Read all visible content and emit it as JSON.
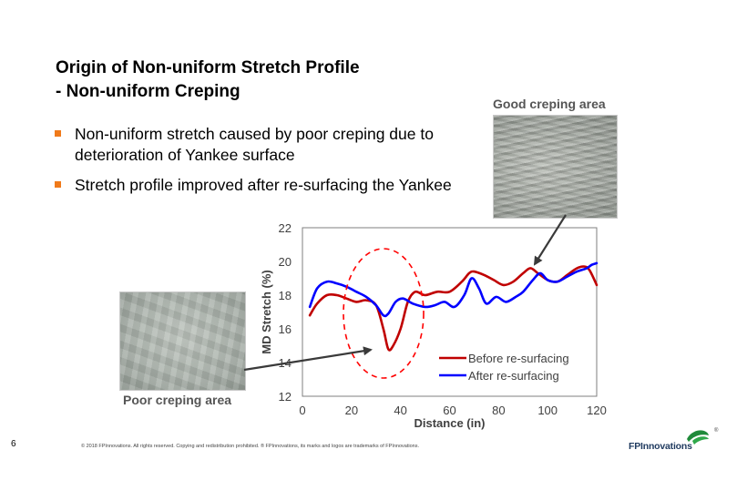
{
  "slide": {
    "title_line1": "Origin of Non-uniform Stretch Profile",
    "title_line2": "- Non-uniform Creping",
    "bullets": [
      "Non-uniform stretch caused by poor creping due to deterioration of Yankee surface",
      "Stretch profile improved after re-surfacing the Yankee"
    ],
    "good_label": "Good creping area",
    "poor_label": "Poor creping area",
    "page_number": "6",
    "copyright": "© 2018 FPInnovations. All rights reserved. Copying and redistribution prohibited. ® FPInnovations, its marks and logos are trademarks of FPInnovations.",
    "logo_text": "FPInnovations",
    "logo_mark": "®"
  },
  "colors": {
    "before": "#c00000",
    "after": "#0000ff",
    "bullet": "#f07a1a",
    "highlight": "#ff0000"
  },
  "chart_data": {
    "type": "line",
    "xlabel": "Distance (in)",
    "ylabel": "MD Stretch (%)",
    "xlim": [
      0,
      120
    ],
    "ylim": [
      12,
      22
    ],
    "xticks": [
      0,
      20,
      40,
      60,
      80,
      100,
      120
    ],
    "yticks": [
      12,
      14,
      16,
      18,
      20,
      22
    ],
    "grid": false,
    "legend_position": "bottom-right",
    "series": [
      {
        "name": "Before re-surfacing",
        "x": [
          3,
          6,
          10,
          14,
          18,
          22,
          26,
          30,
          33,
          35,
          37,
          40,
          43,
          46,
          50,
          55,
          60,
          65,
          68,
          70,
          74,
          78,
          82,
          86,
          90,
          93,
          96,
          100,
          104,
          108,
          112,
          115,
          117,
          120
        ],
        "y": [
          16.8,
          17.5,
          18.0,
          18.0,
          17.8,
          17.6,
          17.7,
          17.4,
          16.0,
          14.8,
          15.0,
          16.0,
          17.6,
          18.2,
          18.0,
          18.2,
          18.2,
          18.8,
          19.3,
          19.4,
          19.2,
          18.9,
          18.6,
          18.8,
          19.3,
          19.6,
          19.3,
          18.9,
          18.8,
          19.2,
          19.6,
          19.7,
          19.5,
          18.6
        ]
      },
      {
        "name": "After re-surfacing",
        "x": [
          3,
          6,
          10,
          14,
          18,
          22,
          26,
          30,
          33,
          35,
          38,
          41,
          45,
          50,
          54,
          58,
          62,
          66,
          69,
          72,
          75,
          79,
          83,
          87,
          90,
          94,
          97,
          100,
          104,
          108,
          112,
          116,
          118,
          120
        ],
        "y": [
          17.3,
          18.4,
          18.8,
          18.7,
          18.5,
          18.2,
          17.9,
          17.4,
          16.8,
          16.9,
          17.6,
          17.8,
          17.5,
          17.3,
          17.4,
          17.6,
          17.3,
          18.0,
          19.0,
          18.4,
          17.5,
          17.9,
          17.6,
          17.9,
          18.2,
          18.9,
          19.3,
          18.9,
          18.8,
          19.1,
          19.4,
          19.6,
          19.8,
          19.9
        ]
      }
    ]
  }
}
